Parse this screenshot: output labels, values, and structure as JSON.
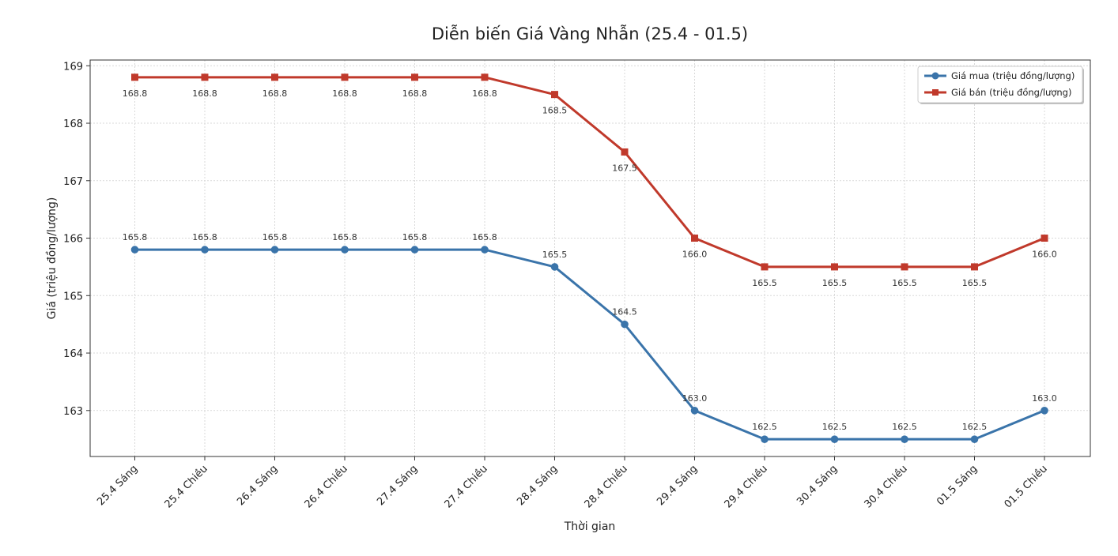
{
  "chart_data": {
    "type": "line",
    "title": "Diễn biến Giá Vàng Nhẫn (25.4 - 01.5)",
    "xlabel": "Thời gian",
    "ylabel": "Giá (triệu đồng/lượng)",
    "categories": [
      "25.4 Sáng",
      "25.4 Chiều",
      "26.4 Sáng",
      "26.4 Chiều",
      "27.4 Sáng",
      "27.4 Chiều",
      "28.4 Sáng",
      "28.4 Chiều",
      "29.4 Sáng",
      "29.4 Chiều",
      "30.4 Sáng",
      "30.4 Chiều",
      "01.5 Sáng",
      "01.5 Chiều"
    ],
    "ylim": [
      162.2,
      169.1
    ],
    "yticks": [
      163,
      164,
      165,
      166,
      167,
      168,
      169
    ],
    "grid": true,
    "legend_position": "top-right",
    "series": [
      {
        "name": "Giá mua (triệu đồng/lượng)",
        "color": "#3a74aa",
        "marker": "circle",
        "values": [
          165.8,
          165.8,
          165.8,
          165.8,
          165.8,
          165.8,
          165.5,
          164.5,
          163.0,
          162.5,
          162.5,
          162.5,
          162.5,
          163.0
        ],
        "labels": [
          "165.8",
          "165.8",
          "165.8",
          "165.8",
          "165.8",
          "165.8",
          "165.5",
          "164.5",
          "163.0",
          "162.5",
          "162.5",
          "162.5",
          "162.5",
          "163.0"
        ],
        "label_position": "above"
      },
      {
        "name": "Giá bán (triệu đồng/lượng)",
        "color": "#c0392b",
        "marker": "square",
        "values": [
          168.8,
          168.8,
          168.8,
          168.8,
          168.8,
          168.8,
          168.5,
          167.5,
          166.0,
          165.5,
          165.5,
          165.5,
          165.5,
          166.0
        ],
        "labels": [
          "168.8",
          "168.8",
          "168.8",
          "168.8",
          "168.8",
          "168.8",
          "168.5",
          "167.5",
          "166.0",
          "165.5",
          "165.5",
          "165.5",
          "165.5",
          "166.0"
        ],
        "label_position": "below"
      }
    ]
  }
}
